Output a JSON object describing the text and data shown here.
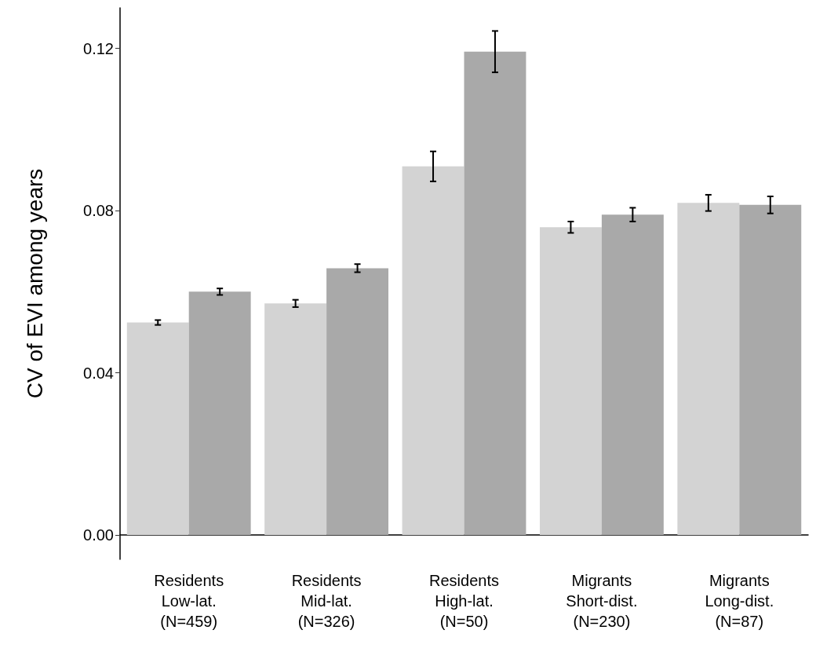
{
  "chart_data": {
    "type": "bar",
    "ylabel": "CV of EVI among years",
    "categories": [
      "Residents\nLow-lat.\n(N=459)",
      "Residents\nMid-lat.\n(N=326)",
      "Residents\nHigh-lat.\n(N=50)",
      "Migrants\nShort-dist.\n(N=230)",
      "Migrants\nLong-dist.\n(N=87)"
    ],
    "series": [
      {
        "color": "#d3d3d3",
        "values": [
          0.0524,
          0.0571,
          0.0909,
          0.0759,
          0.0819
        ],
        "errors": [
          0.0006,
          0.0009,
          0.0037,
          0.0014,
          0.002
        ]
      },
      {
        "color": "#a9a9a9",
        "values": [
          0.06,
          0.0658,
          0.1192,
          0.079,
          0.0814
        ],
        "errors": [
          0.0008,
          0.001,
          0.0051,
          0.0017,
          0.0021
        ]
      }
    ],
    "ylim": [
      -0.006,
      0.13
    ],
    "yticks": [
      {
        "value": 0,
        "label": "0.00"
      },
      {
        "value": 0.04,
        "label": "0.04"
      },
      {
        "value": 0.08,
        "label": "0.08"
      },
      {
        "value": 0.12,
        "label": "0.12"
      }
    ],
    "grid": false
  }
}
